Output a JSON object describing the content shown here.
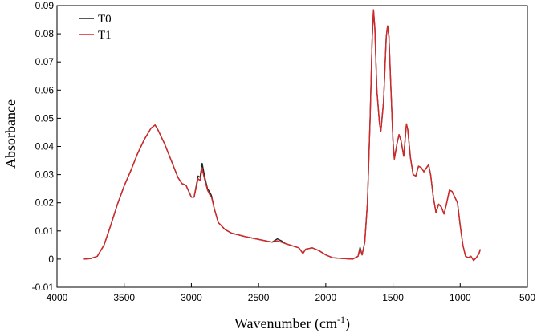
{
  "chart_data": {
    "type": "line",
    "xlabel": "Wavenumber (cm",
    "xlabel_sup": "-1",
    "xlabel_close": ")",
    "ylabel": "Absorbance",
    "xlim": [
      4000,
      500
    ],
    "ylim": [
      -0.01,
      0.09
    ],
    "x_reversed": true,
    "grid": false,
    "legend_position": "top-left",
    "x_ticks": [
      4000,
      3500,
      3000,
      2500,
      2000,
      1500,
      1000,
      500
    ],
    "x_tick_labels": [
      "4000",
      "3500",
      "3000",
      "2500",
      "2000",
      "1500",
      "1000",
      "500"
    ],
    "y_ticks": [
      -0.01,
      0,
      0.01,
      0.02,
      0.03,
      0.04,
      0.05,
      0.06,
      0.07,
      0.08,
      0.09
    ],
    "y_tick_labels": [
      "-0.01",
      "0",
      "0.01",
      "0.02",
      "0.03",
      "0.04",
      "0.05",
      "0.06",
      "0.07",
      "0.08",
      "0.09"
    ],
    "series": [
      {
        "name": "T0",
        "color": "#222222",
        "points": [
          [
            3800,
            0.0
          ],
          [
            3750,
            0.0002
          ],
          [
            3700,
            0.001
          ],
          [
            3650,
            0.005
          ],
          [
            3600,
            0.012
          ],
          [
            3550,
            0.0195
          ],
          [
            3500,
            0.026
          ],
          [
            3450,
            0.0315
          ],
          [
            3400,
            0.0375
          ],
          [
            3350,
            0.0425
          ],
          [
            3300,
            0.0465
          ],
          [
            3270,
            0.0476
          ],
          [
            3250,
            0.046
          ],
          [
            3200,
            0.041
          ],
          [
            3150,
            0.035
          ],
          [
            3100,
            0.029
          ],
          [
            3070,
            0.0268
          ],
          [
            3040,
            0.0262
          ],
          [
            3000,
            0.022
          ],
          [
            2980,
            0.022
          ],
          [
            2950,
            0.0295
          ],
          [
            2935,
            0.029
          ],
          [
            2920,
            0.034
          ],
          [
            2900,
            0.029
          ],
          [
            2880,
            0.025
          ],
          [
            2860,
            0.0235
          ],
          [
            2850,
            0.0225
          ],
          [
            2830,
            0.018
          ],
          [
            2800,
            0.013
          ],
          [
            2750,
            0.0105
          ],
          [
            2700,
            0.0092
          ],
          [
            2600,
            0.008
          ],
          [
            2500,
            0.007
          ],
          [
            2400,
            0.006
          ],
          [
            2360,
            0.0072
          ],
          [
            2330,
            0.0065
          ],
          [
            2300,
            0.0055
          ],
          [
            2200,
            0.004
          ],
          [
            2170,
            0.002
          ],
          [
            2150,
            0.0035
          ],
          [
            2100,
            0.004
          ],
          [
            2050,
            0.003
          ],
          [
            2000,
            0.0015
          ],
          [
            1950,
            0.0005
          ],
          [
            1900,
            0.0003
          ],
          [
            1800,
            0.0
          ],
          [
            1760,
            0.001
          ],
          [
            1745,
            0.0042
          ],
          [
            1730,
            0.0015
          ],
          [
            1710,
            0.006
          ],
          [
            1690,
            0.02
          ],
          [
            1670,
            0.05
          ],
          [
            1655,
            0.078
          ],
          [
            1645,
            0.0885
          ],
          [
            1635,
            0.082
          ],
          [
            1620,
            0.06
          ],
          [
            1600,
            0.048
          ],
          [
            1590,
            0.0455
          ],
          [
            1570,
            0.056
          ],
          [
            1550,
            0.079
          ],
          [
            1540,
            0.0828
          ],
          [
            1530,
            0.079
          ],
          [
            1515,
            0.06
          ],
          [
            1500,
            0.042
          ],
          [
            1490,
            0.0355
          ],
          [
            1470,
            0.041
          ],
          [
            1455,
            0.0442
          ],
          [
            1440,
            0.042
          ],
          [
            1420,
            0.0365
          ],
          [
            1405,
            0.045
          ],
          [
            1400,
            0.048
          ],
          [
            1390,
            0.046
          ],
          [
            1370,
            0.036
          ],
          [
            1350,
            0.03
          ],
          [
            1330,
            0.0295
          ],
          [
            1310,
            0.033
          ],
          [
            1290,
            0.0325
          ],
          [
            1270,
            0.031
          ],
          [
            1250,
            0.0325
          ],
          [
            1235,
            0.0335
          ],
          [
            1220,
            0.03
          ],
          [
            1200,
            0.022
          ],
          [
            1180,
            0.0165
          ],
          [
            1160,
            0.0195
          ],
          [
            1140,
            0.0185
          ],
          [
            1120,
            0.016
          ],
          [
            1100,
            0.02
          ],
          [
            1080,
            0.0245
          ],
          [
            1060,
            0.024
          ],
          [
            1040,
            0.022
          ],
          [
            1020,
            0.02
          ],
          [
            1000,
            0.012
          ],
          [
            980,
            0.005
          ],
          [
            960,
            0.001
          ],
          [
            940,
            0.0005
          ],
          [
            920,
            0.001
          ],
          [
            900,
            -0.0005
          ],
          [
            880,
            0.0005
          ],
          [
            860,
            0.002
          ],
          [
            850,
            0.0035
          ]
        ]
      },
      {
        "name": "T1",
        "color": "#d62728",
        "points": [
          [
            3800,
            0.0
          ],
          [
            3750,
            0.0002
          ],
          [
            3700,
            0.001
          ],
          [
            3650,
            0.005
          ],
          [
            3600,
            0.012
          ],
          [
            3550,
            0.0195
          ],
          [
            3500,
            0.026
          ],
          [
            3450,
            0.0315
          ],
          [
            3400,
            0.0375
          ],
          [
            3350,
            0.0425
          ],
          [
            3300,
            0.0465
          ],
          [
            3270,
            0.0476
          ],
          [
            3250,
            0.046
          ],
          [
            3200,
            0.041
          ],
          [
            3150,
            0.035
          ],
          [
            3100,
            0.029
          ],
          [
            3070,
            0.0268
          ],
          [
            3040,
            0.0262
          ],
          [
            3000,
            0.022
          ],
          [
            2980,
            0.022
          ],
          [
            2950,
            0.0285
          ],
          [
            2935,
            0.028
          ],
          [
            2920,
            0.032
          ],
          [
            2900,
            0.028
          ],
          [
            2880,
            0.0245
          ],
          [
            2860,
            0.0225
          ],
          [
            2850,
            0.022
          ],
          [
            2830,
            0.018
          ],
          [
            2800,
            0.013
          ],
          [
            2750,
            0.0105
          ],
          [
            2700,
            0.0092
          ],
          [
            2600,
            0.008
          ],
          [
            2500,
            0.007
          ],
          [
            2400,
            0.006
          ],
          [
            2360,
            0.0065
          ],
          [
            2330,
            0.006
          ],
          [
            2300,
            0.0055
          ],
          [
            2200,
            0.004
          ],
          [
            2170,
            0.002
          ],
          [
            2150,
            0.0035
          ],
          [
            2100,
            0.004
          ],
          [
            2050,
            0.003
          ],
          [
            2000,
            0.0015
          ],
          [
            1950,
            0.0005
          ],
          [
            1900,
            0.0003
          ],
          [
            1800,
            0.0
          ],
          [
            1760,
            0.001
          ],
          [
            1745,
            0.0035
          ],
          [
            1730,
            0.0015
          ],
          [
            1710,
            0.006
          ],
          [
            1690,
            0.02
          ],
          [
            1670,
            0.05
          ],
          [
            1655,
            0.078
          ],
          [
            1645,
            0.0885
          ],
          [
            1635,
            0.082
          ],
          [
            1620,
            0.06
          ],
          [
            1600,
            0.048
          ],
          [
            1590,
            0.0455
          ],
          [
            1570,
            0.056
          ],
          [
            1550,
            0.079
          ],
          [
            1540,
            0.0828
          ],
          [
            1530,
            0.079
          ],
          [
            1515,
            0.06
          ],
          [
            1500,
            0.042
          ],
          [
            1490,
            0.0355
          ],
          [
            1470,
            0.041
          ],
          [
            1455,
            0.0442
          ],
          [
            1440,
            0.042
          ],
          [
            1420,
            0.0365
          ],
          [
            1405,
            0.045
          ],
          [
            1400,
            0.048
          ],
          [
            1390,
            0.046
          ],
          [
            1370,
            0.036
          ],
          [
            1350,
            0.03
          ],
          [
            1330,
            0.0295
          ],
          [
            1310,
            0.033
          ],
          [
            1290,
            0.0325
          ],
          [
            1270,
            0.031
          ],
          [
            1250,
            0.0325
          ],
          [
            1235,
            0.0335
          ],
          [
            1220,
            0.03
          ],
          [
            1200,
            0.022
          ],
          [
            1180,
            0.0165
          ],
          [
            1160,
            0.0195
          ],
          [
            1140,
            0.0185
          ],
          [
            1120,
            0.016
          ],
          [
            1100,
            0.02
          ],
          [
            1080,
            0.0245
          ],
          [
            1060,
            0.024
          ],
          [
            1040,
            0.022
          ],
          [
            1020,
            0.02
          ],
          [
            1000,
            0.012
          ],
          [
            980,
            0.005
          ],
          [
            960,
            0.001
          ],
          [
            940,
            0.0005
          ],
          [
            920,
            0.001
          ],
          [
            900,
            -0.0005
          ],
          [
            880,
            0.0005
          ],
          [
            860,
            0.002
          ],
          [
            850,
            0.0035
          ]
        ]
      }
    ]
  }
}
